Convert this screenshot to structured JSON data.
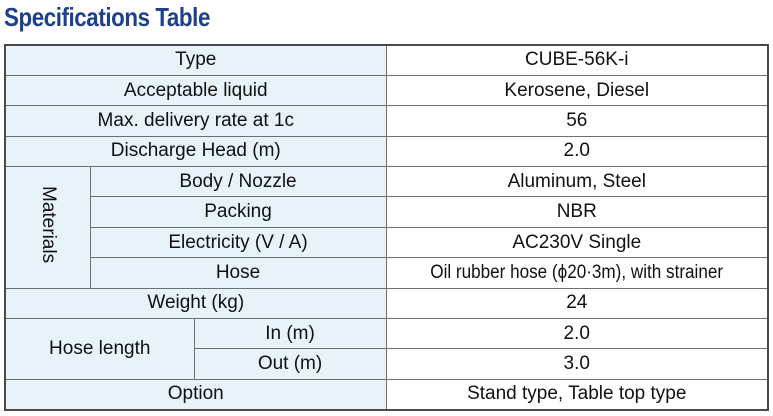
{
  "title": "Specifications Table",
  "rows": {
    "type": {
      "label": "Type",
      "value": "CUBE-56K-i"
    },
    "liquid": {
      "label": "Acceptable liquid",
      "value": "Kerosene, Diesel"
    },
    "delivery": {
      "label": "Max. delivery rate at 1c",
      "value": "56"
    },
    "head": {
      "label": "Discharge Head (m)",
      "value": "2.0"
    },
    "materials": {
      "label": "Materials",
      "body": {
        "label": "Body / Nozzle",
        "value": "Aluminum, Steel"
      },
      "packing": {
        "label": "Packing",
        "value": "NBR"
      },
      "electricity": {
        "label": "Electricity (V / A)",
        "value": "AC230V Single"
      },
      "hose": {
        "label": "Hose",
        "value": "Oil rubber hose (ϕ20·3m), with strainer"
      }
    },
    "weight": {
      "label": "Weight (kg)",
      "value": "24"
    },
    "hose_length": {
      "label": "Hose length",
      "in": {
        "label": "In (m)",
        "value": "2.0"
      },
      "out": {
        "label": "Out (m)",
        "value": "3.0"
      }
    },
    "option": {
      "label": "Option",
      "value": "Stand type, Table top type"
    }
  }
}
